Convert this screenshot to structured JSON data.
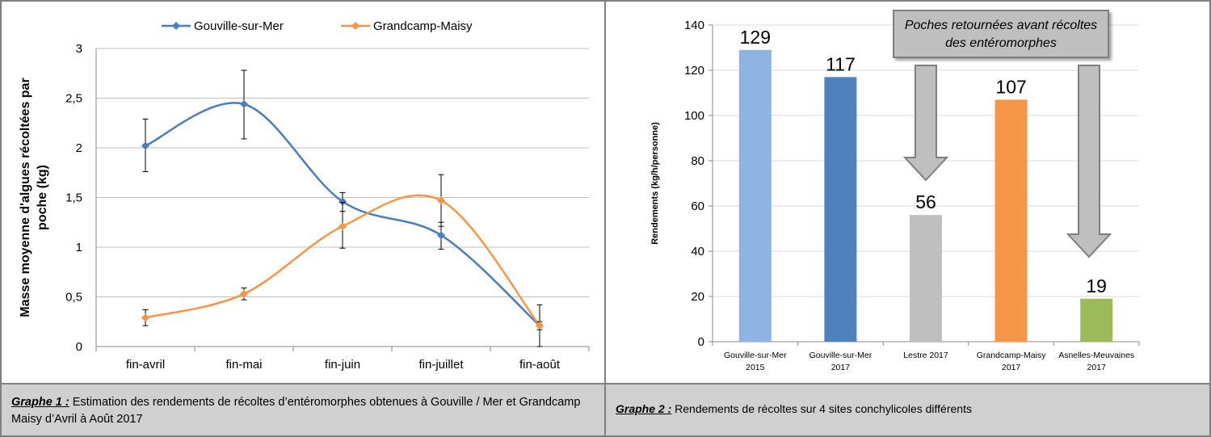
{
  "graph1": {
    "caption_lead": "Graphe 1 :",
    "caption_text": " Estimation des rendements de récoltes d’entéromorphes obtenues à Gouville / Mer et Grandcamp Maisy d’Avril à Août 2017"
  },
  "graph2": {
    "caption_lead": "Graphe 2 :",
    "caption_text": " Rendements de récoltes sur 4 sites conchylicoles différents",
    "callout": "Poches retournées avant récoltes des entéromorphes"
  },
  "chart_data": [
    {
      "type": "line",
      "title": "",
      "xlabel": "",
      "ylabel": "Masse moyenne d'algues récoltées par poche (kg)",
      "ylabel_lines": [
        "Masse moyenne d'algues récoltées par",
        "poche (kg)"
      ],
      "categories": [
        "fin-avril",
        "fin-mai",
        "fin-juin",
        "fin-juillet",
        "fin-août"
      ],
      "ylim": [
        0,
        3
      ],
      "yticks": [
        0,
        0.5,
        1,
        1.5,
        2,
        2.5,
        3
      ],
      "ytick_labels": [
        "0",
        "0,5",
        "1",
        "1,5",
        "2",
        "2,5",
        "3"
      ],
      "grid": true,
      "smooth": true,
      "legend_position": "top",
      "series": [
        {
          "name": "Gouville-sur-Mer",
          "color": "#4a7ebb",
          "values": [
            2.02,
            2.44,
            1.46,
            1.12,
            0.21
          ],
          "err_low": [
            1.76,
            2.09,
            1.36,
            0.98,
            0.0
          ],
          "err_high": [
            2.29,
            2.78,
            1.55,
            1.25,
            0.42
          ]
        },
        {
          "name": "Grandcamp-Maisy",
          "color": "#f79646",
          "values": [
            0.29,
            0.53,
            1.21,
            1.47,
            0.21
          ],
          "err_low": [
            0.21,
            0.47,
            0.99,
            1.21,
            0.17
          ],
          "err_high": [
            0.37,
            0.59,
            1.45,
            1.73,
            0.25
          ]
        }
      ]
    },
    {
      "type": "bar",
      "title": "",
      "xlabel": "",
      "ylabel": "Rendements  (kg/h/personne)",
      "categories": [
        [
          "Gouville-sur-Mer",
          "2015"
        ],
        [
          "Gouville-sur-Mer",
          "2017"
        ],
        [
          "Lestre 2017"
        ],
        [
          "Grandcamp-Maisy",
          "2017"
        ],
        [
          "Asnelles-Meuvaines",
          "2017"
        ]
      ],
      "values": [
        129,
        117,
        56,
        107,
        19
      ],
      "value_labels": [
        "129",
        "117",
        "56",
        "107",
        "19"
      ],
      "colors": [
        "#8eb4e3",
        "#4f81bd",
        "#bfbfbf",
        "#f79646",
        "#9bbb59"
      ],
      "ylim": [
        0,
        140
      ],
      "yticks": [
        0,
        20,
        40,
        60,
        80,
        100,
        120,
        140
      ],
      "ytick_labels": [
        "0",
        "20",
        "40",
        "60",
        "80",
        "100",
        "120",
        "140"
      ],
      "grid": true
    }
  ]
}
